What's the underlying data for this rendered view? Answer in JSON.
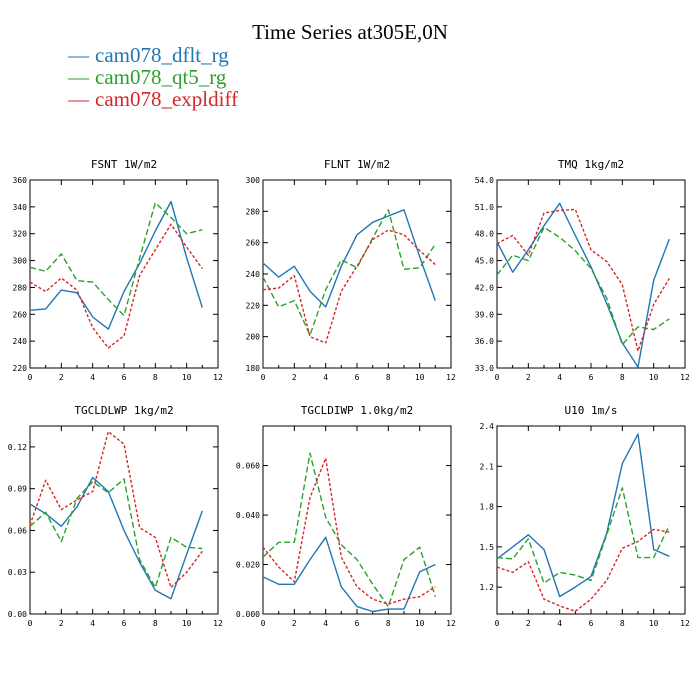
{
  "title": "Time Series at305E,0N",
  "colors": {
    "dflt": "#1f77b4",
    "qt5": "#2ca02c",
    "expl": "#d62728"
  },
  "legend": [
    {
      "label": "cam078_dflt_rg",
      "color": "#1f77b4"
    },
    {
      "label": "cam078_qt5_rg",
      "color": "#2ca02c"
    },
    {
      "label": "cam078_expldiff",
      "color": "#d62728"
    }
  ],
  "chart_data": [
    {
      "type": "line",
      "title": "FSNT  1W/m2",
      "x": [
        0,
        1,
        2,
        3,
        4,
        5,
        6,
        7,
        8,
        9,
        10,
        11
      ],
      "xlim": [
        0,
        12
      ],
      "xticks": [
        "0",
        "2",
        "4",
        "6",
        "8",
        "10",
        "12"
      ],
      "ylim": [
        220,
        360
      ],
      "yticks": [
        "220",
        "240",
        "260",
        "280",
        "300",
        "320",
        "340",
        "360"
      ],
      "series": [
        {
          "name": "cam078_dflt_rg",
          "values": [
            263,
            264,
            278,
            276,
            258,
            249,
            277,
            298,
            322,
            344,
            302,
            265
          ]
        },
        {
          "name": "cam078_qt5_rg",
          "values": [
            295,
            292,
            305,
            285,
            284,
            271,
            259,
            302,
            343,
            332,
            320,
            323
          ]
        },
        {
          "name": "cam078_expldiff",
          "values": [
            284,
            277,
            287,
            278,
            250,
            235,
            244,
            289,
            308,
            327,
            310,
            294
          ]
        }
      ]
    },
    {
      "type": "line",
      "title": "FLNT  1W/m2",
      "x": [
        0,
        1,
        2,
        3,
        4,
        5,
        6,
        7,
        8,
        9,
        10,
        11
      ],
      "xlim": [
        0,
        12
      ],
      "xticks": [
        "0",
        "2",
        "4",
        "6",
        "8",
        "10",
        "12"
      ],
      "ylim": [
        180,
        300
      ],
      "yticks": [
        "180",
        "200",
        "220",
        "240",
        "260",
        "280",
        "300"
      ],
      "series": [
        {
          "name": "cam078_dflt_rg",
          "values": [
            247,
            238,
            245,
            229,
            219,
            245,
            265,
            273,
            277,
            281,
            251,
            223
          ]
        },
        {
          "name": "cam078_qt5_rg",
          "values": [
            238,
            219,
            223,
            201,
            230,
            249,
            244,
            263,
            281,
            243,
            244,
            259
          ]
        },
        {
          "name": "cam078_expldiff",
          "values": [
            230,
            231,
            239,
            200,
            196,
            229,
            245,
            262,
            268,
            265,
            255,
            246
          ]
        }
      ]
    },
    {
      "type": "line",
      "title": "TMQ  1kg/m2",
      "x": [
        0,
        1,
        2,
        3,
        4,
        5,
        6,
        7,
        8,
        9,
        10,
        11
      ],
      "xlim": [
        0,
        12
      ],
      "xticks": [
        "0",
        "2",
        "4",
        "6",
        "8",
        "10",
        "12"
      ],
      "ylim": [
        33,
        54
      ],
      "yticks": [
        "33.0",
        "36.0",
        "39.0",
        "42.0",
        "45.0",
        "48.0",
        "51.0",
        "54.0"
      ],
      "series": [
        {
          "name": "cam078_dflt_rg",
          "values": [
            47.1,
            43.7,
            46.2,
            48.9,
            51.4,
            47.8,
            44.3,
            40.2,
            35.8,
            33.1,
            42.8,
            47.4
          ]
        },
        {
          "name": "cam078_qt5_rg",
          "values": [
            43.4,
            45.6,
            45.0,
            48.7,
            47.6,
            46.1,
            44.1,
            40.8,
            35.6,
            37.6,
            37.3,
            38.5
          ]
        },
        {
          "name": "cam078_expldiff",
          "values": [
            46.9,
            47.8,
            45.6,
            50.3,
            50.6,
            50.7,
            46.2,
            44.9,
            42.3,
            34.9,
            40.1,
            43.0
          ]
        }
      ]
    },
    {
      "type": "line",
      "title": "TGCLDLWP  1kg/m2",
      "x": [
        0,
        1,
        2,
        3,
        4,
        5,
        6,
        7,
        8,
        9,
        10,
        11
      ],
      "xlim": [
        0,
        12
      ],
      "xticks": [
        "0",
        "2",
        "4",
        "6",
        "8",
        "10",
        "12"
      ],
      "ylim": [
        0,
        0.135
      ],
      "yticks": [
        "0.00",
        "0.03",
        "0.06",
        "0.09",
        "0.12"
      ],
      "series": [
        {
          "name": "cam078_dflt_rg",
          "values": [
            0.079,
            0.072,
            0.063,
            0.077,
            0.098,
            0.088,
            0.06,
            0.037,
            0.017,
            0.011,
            0.043,
            0.074
          ]
        },
        {
          "name": "cam078_qt5_rg",
          "values": [
            0.063,
            0.073,
            0.052,
            0.083,
            0.095,
            0.087,
            0.097,
            0.039,
            0.019,
            0.055,
            0.048,
            0.047
          ]
        },
        {
          "name": "cam078_expldiff",
          "values": [
            0.064,
            0.096,
            0.075,
            0.082,
            0.088,
            0.131,
            0.122,
            0.062,
            0.055,
            0.019,
            0.03,
            0.045
          ]
        }
      ]
    },
    {
      "type": "line",
      "title": "TGCLDIWP  1.0kg/m2",
      "x": [
        0,
        1,
        2,
        3,
        4,
        5,
        6,
        7,
        8,
        9,
        10,
        11
      ],
      "xlim": [
        0,
        12
      ],
      "xticks": [
        "0",
        "2",
        "4",
        "6",
        "8",
        "10",
        "12"
      ],
      "ylim": [
        0,
        0.076
      ],
      "yticks": [
        "0.000",
        "0.020",
        "0.040",
        "0.060"
      ],
      "series": [
        {
          "name": "cam078_dflt_rg",
          "values": [
            0.015,
            0.012,
            0.012,
            0.022,
            0.031,
            0.011,
            0.003,
            0.001,
            0.002,
            0.002,
            0.017,
            0.02
          ]
        },
        {
          "name": "cam078_qt5_rg",
          "values": [
            0.023,
            0.029,
            0.029,
            0.065,
            0.039,
            0.028,
            0.022,
            0.012,
            0.003,
            0.022,
            0.027,
            0.007
          ]
        },
        {
          "name": "cam078_expldiff",
          "values": [
            0.027,
            0.019,
            0.013,
            0.047,
            0.063,
            0.023,
            0.011,
            0.006,
            0.004,
            0.006,
            0.007,
            0.011
          ]
        }
      ]
    },
    {
      "type": "line",
      "title": "U10  1m/s",
      "x": [
        0,
        1,
        2,
        3,
        4,
        5,
        6,
        7,
        8,
        9,
        10,
        11
      ],
      "xlim": [
        0,
        12
      ],
      "xticks": [
        "0",
        "2",
        "4",
        "6",
        "8",
        "10",
        "12"
      ],
      "ylim": [
        1.0,
        2.4
      ],
      "yticks": [
        "1.2",
        "1.5",
        "1.8",
        "2.1",
        "2.4"
      ],
      "series": [
        {
          "name": "cam078_dflt_rg",
          "values": [
            1.41,
            1.5,
            1.59,
            1.48,
            1.13,
            1.2,
            1.28,
            1.6,
            2.12,
            2.34,
            1.48,
            1.43
          ]
        },
        {
          "name": "cam078_qt5_rg",
          "values": [
            1.42,
            1.41,
            1.56,
            1.23,
            1.31,
            1.29,
            1.25,
            1.59,
            1.94,
            1.42,
            1.42,
            1.66
          ]
        },
        {
          "name": "cam078_expldiff",
          "values": [
            1.35,
            1.31,
            1.39,
            1.11,
            1.06,
            1.02,
            1.11,
            1.25,
            1.49,
            1.54,
            1.63,
            1.61
          ]
        }
      ]
    }
  ]
}
